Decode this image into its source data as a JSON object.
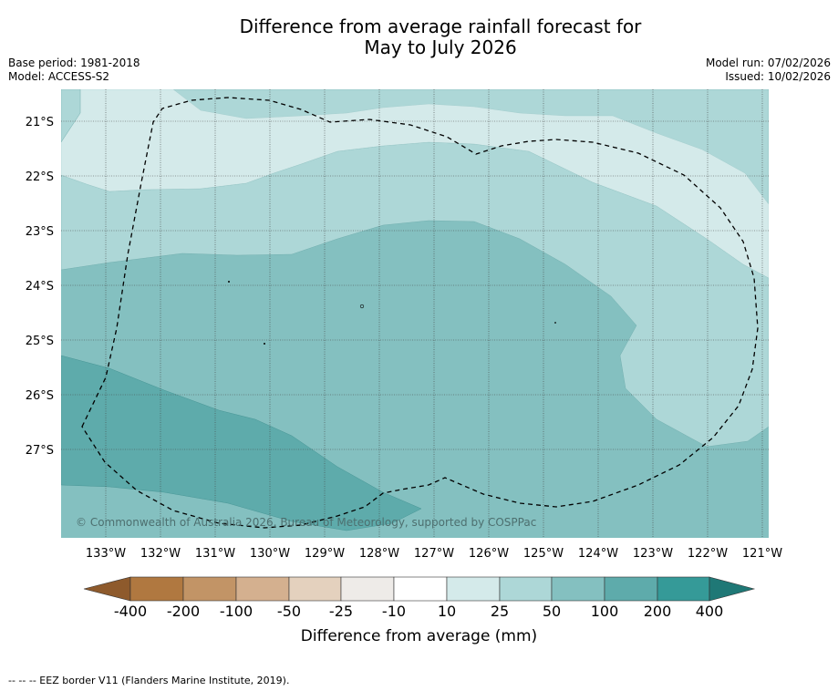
{
  "title": {
    "line1": "Difference from average rainfall forecast for",
    "line2": "May to July 2026"
  },
  "meta_left": {
    "base_period": "Base period: 1981-2018",
    "model": "Model: ACCESS-S2"
  },
  "meta_right": {
    "model_run": "Model run: 07/02/2026",
    "issued": "Issued: 10/02/2026"
  },
  "map": {
    "lat_labels": [
      "21°S",
      "22°S",
      "23°S",
      "24°S",
      "25°S",
      "26°S",
      "27°S"
    ],
    "lon_labels": [
      "133°W",
      "132°W",
      "131°W",
      "130°W",
      "129°W",
      "128°W",
      "127°W",
      "126°W",
      "125°W",
      "124°W",
      "123°W",
      "122°W",
      "121°W"
    ],
    "copyright": "© Commonwealth of Australia 2026, Bureau of Meteorology, supported by COSPPac",
    "border_layer": "EEZ border V11"
  },
  "colorbar": {
    "ticks": [
      "-400",
      "-200",
      "-100",
      "-50",
      "-25",
      "-10",
      "10",
      "25",
      "50",
      "100",
      "200",
      "400"
    ],
    "colors": [
      "#b07840",
      "#c29466",
      "#d4b08f",
      "#e4d1be",
      "#eeebe8",
      "#ffffff",
      "#d4eaea",
      "#add7d7",
      "#84c0c0",
      "#5eabab",
      "#359a98"
    ],
    "low_extend_color": "#8e5a2c",
    "high_extend_color": "#1f7876",
    "label": "Difference from average (mm)"
  },
  "footer": "--  --  -- EEZ border V11 (Flanders Marine Institute, 2019)."
}
